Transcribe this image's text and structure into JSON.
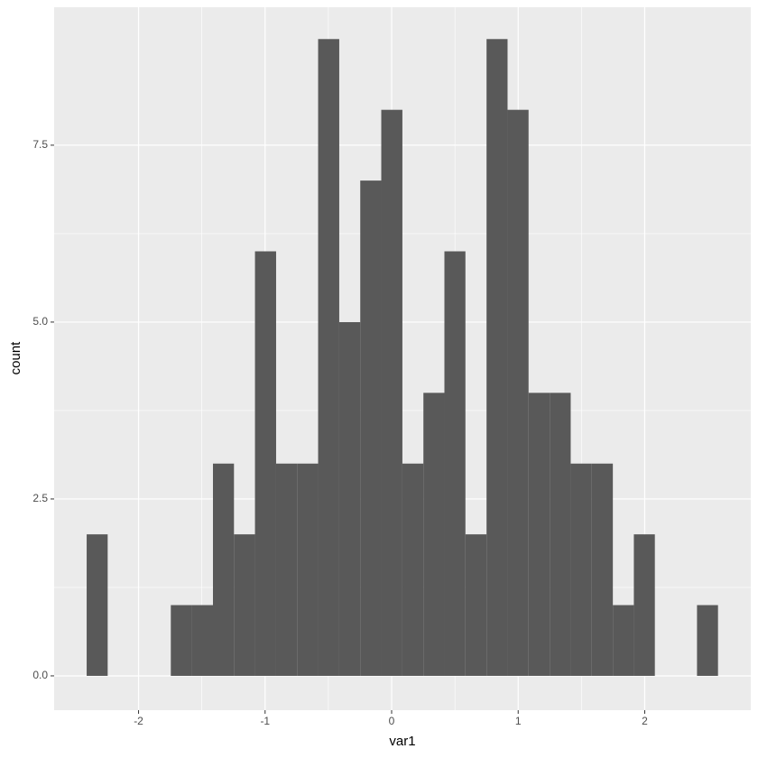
{
  "chart_data": {
    "type": "histogram",
    "x_label": "var1",
    "y_label": "count",
    "bins": [
      -2.41,
      -2.244,
      -2.077,
      -1.911,
      -1.745,
      -1.579,
      -1.412,
      -1.246,
      -1.08,
      -0.913,
      -0.747,
      -0.581,
      -0.414,
      -0.248,
      -0.082,
      0.085,
      0.251,
      0.417,
      0.583,
      0.75,
      0.916,
      1.082,
      1.249,
      1.415,
      1.581,
      1.748,
      1.914,
      2.08,
      2.247,
      2.413,
      2.579
    ],
    "values": [
      2,
      0,
      0,
      0,
      1,
      1,
      3,
      2,
      6,
      3,
      3,
      9,
      5,
      7,
      8,
      3,
      4,
      6,
      2,
      9,
      8,
      4,
      4,
      3,
      3,
      1,
      2,
      0,
      0,
      1
    ],
    "color": "#595959",
    "xlim": [
      -2.667,
      2.838
    ],
    "xticks": [
      -2,
      -1,
      0,
      1,
      2
    ],
    "ylim": [
      -0.485,
      9.45
    ],
    "yticks": [
      {
        "value": 0,
        "label": "0.0"
      },
      {
        "value": 2.5,
        "label": "2.5"
      },
      {
        "value": 5,
        "label": "5.0"
      },
      {
        "value": 7.5,
        "label": "7.5"
      }
    ],
    "grid": true
  }
}
